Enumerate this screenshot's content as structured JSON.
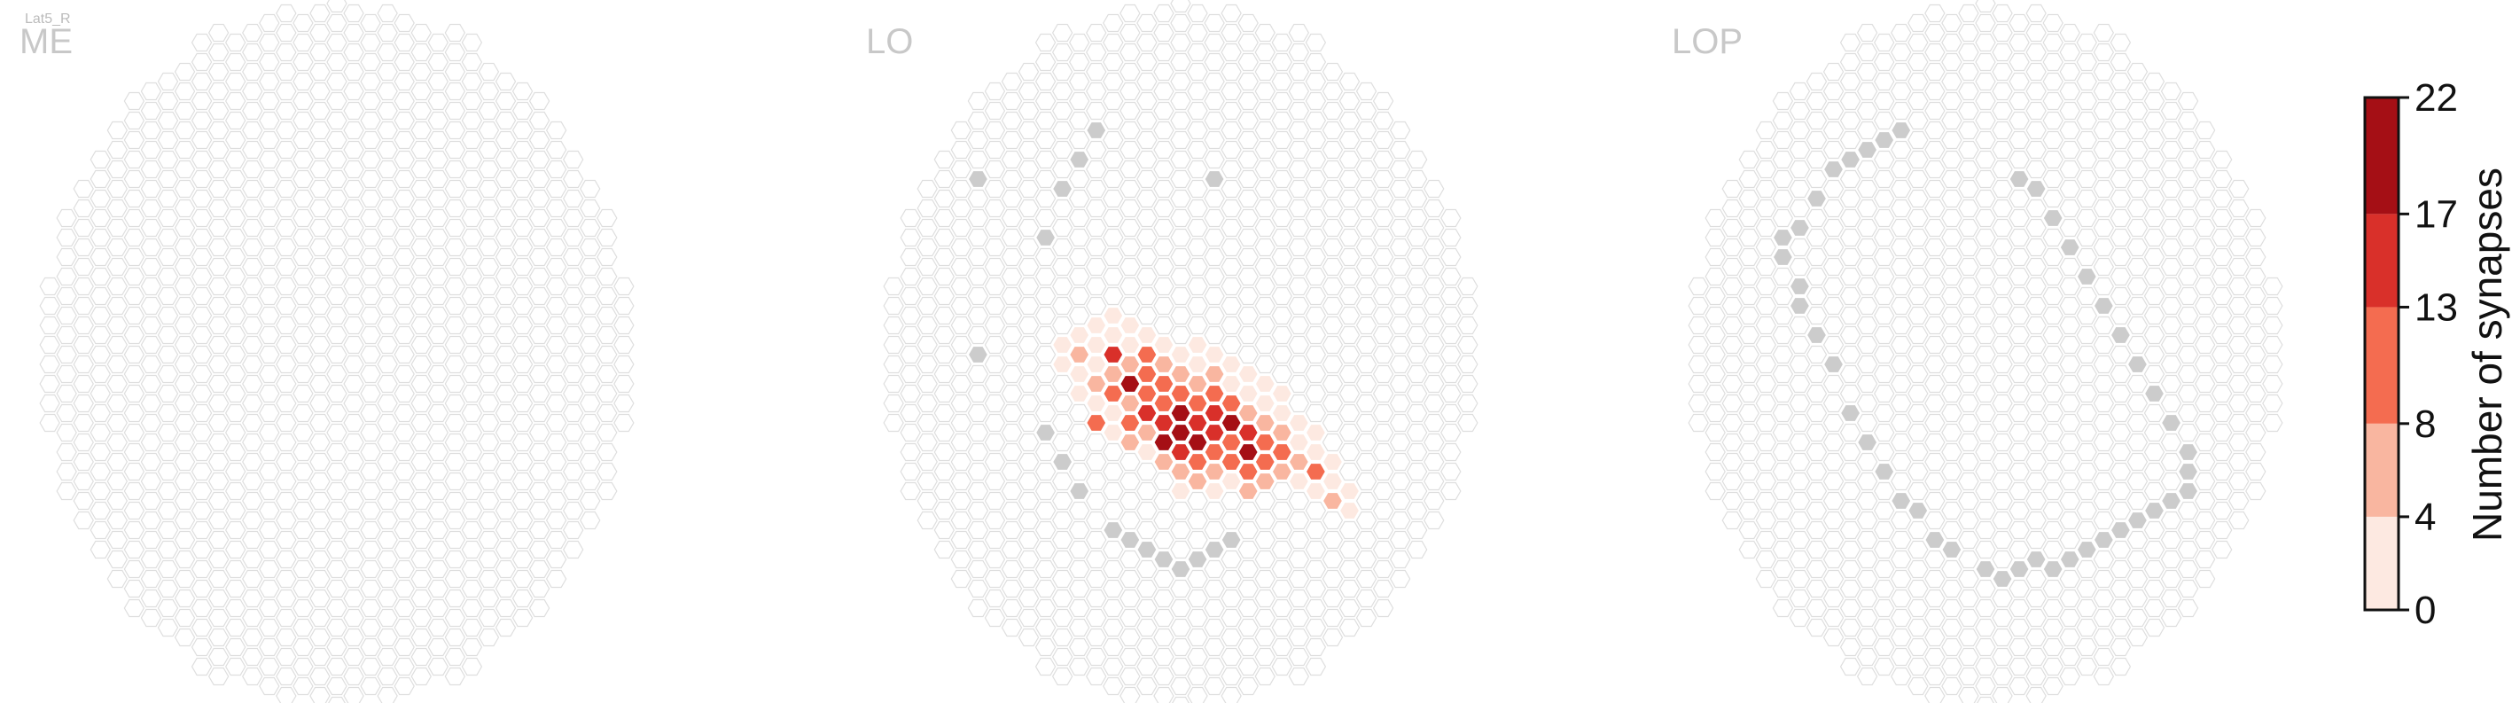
{
  "cell_type_label": "Lat5_R",
  "colors": {
    "grid_stroke": "#dedede",
    "empty_fill": "#ffffff",
    "missing_fill": "#cccccc",
    "scale": [
      "#fde9e1",
      "#f9b6a0",
      "#f46c50",
      "#d9302a",
      "#a50f15"
    ]
  },
  "chart_data": [
    {
      "type": "heatmap",
      "title": "ME",
      "missing_columns": [],
      "cells": []
    },
    {
      "type": "heatmap",
      "title": "LO",
      "missing_columns": [
        [
          -8,
          -2
        ],
        [
          -8,
          8
        ],
        [
          -7,
          -5
        ],
        [
          -7,
          9
        ],
        [
          -6,
          -7
        ],
        [
          -6,
          10
        ],
        [
          -5,
          -9
        ],
        [
          -4,
          11
        ],
        [
          -3,
          11
        ],
        [
          -2,
          11
        ],
        [
          -1,
          11
        ],
        [
          0,
          11
        ],
        [
          1,
          10
        ],
        [
          2,
          -10
        ],
        [
          2,
          9
        ],
        [
          3,
          8
        ],
        [
          -12,
          -3
        ],
        [
          -12,
          6
        ]
      ],
      "cells": [
        [
          -6,
          3,
          7
        ],
        [
          -6,
          4,
          3
        ],
        [
          -5,
          2,
          2
        ],
        [
          -5,
          3,
          4
        ],
        [
          -5,
          4,
          6
        ],
        [
          -5,
          5,
          4
        ],
        [
          -5,
          6,
          12
        ],
        [
          -4,
          1,
          1
        ],
        [
          -4,
          2,
          15
        ],
        [
          -4,
          3,
          6
        ],
        [
          -4,
          4,
          9
        ],
        [
          -4,
          5,
          4
        ],
        [
          -4,
          6,
          2
        ],
        [
          -3,
          0,
          1
        ],
        [
          -3,
          1,
          3
        ],
        [
          -3,
          2,
          6
        ],
        [
          -3,
          3,
          18
        ],
        [
          -3,
          4,
          7
        ],
        [
          -3,
          5,
          9
        ],
        [
          -3,
          6,
          5
        ],
        [
          -2,
          0,
          2
        ],
        [
          -2,
          1,
          11
        ],
        [
          -2,
          2,
          10
        ],
        [
          -2,
          3,
          12
        ],
        [
          -2,
          4,
          14
        ],
        [
          -2,
          5,
          8
        ],
        [
          -2,
          6,
          3
        ],
        [
          -1,
          0,
          1
        ],
        [
          -1,
          1,
          5
        ],
        [
          -1,
          2,
          9
        ],
        [
          -1,
          3,
          11
        ],
        [
          -1,
          4,
          15
        ],
        [
          -1,
          5,
          20
        ],
        [
          -1,
          6,
          6
        ],
        [
          0,
          0,
          3
        ],
        [
          0,
          1,
          7
        ],
        [
          0,
          2,
          10
        ],
        [
          0,
          3,
          19
        ],
        [
          0,
          4,
          21
        ],
        [
          0,
          5,
          16
        ],
        [
          0,
          6,
          8
        ],
        [
          0,
          7,
          2
        ],
        [
          1,
          -1,
          1
        ],
        [
          1,
          0,
          3
        ],
        [
          1,
          1,
          8
        ],
        [
          1,
          2,
          12
        ],
        [
          1,
          3,
          17
        ],
        [
          1,
          4,
          22
        ],
        [
          1,
          5,
          13
        ],
        [
          1,
          6,
          5
        ],
        [
          2,
          -1,
          2
        ],
        [
          2,
          0,
          6
        ],
        [
          2,
          1,
          9
        ],
        [
          2,
          2,
          14
        ],
        [
          2,
          3,
          16
        ],
        [
          2,
          4,
          11
        ],
        [
          2,
          5,
          7
        ],
        [
          2,
          6,
          3
        ],
        [
          3,
          -1,
          1
        ],
        [
          3,
          0,
          4
        ],
        [
          3,
          1,
          10
        ],
        [
          3,
          2,
          18
        ],
        [
          3,
          3,
          13
        ],
        [
          3,
          4,
          9
        ],
        [
          3,
          5,
          4
        ],
        [
          4,
          0,
          2
        ],
        [
          4,
          1,
          7
        ],
        [
          4,
          2,
          15
        ],
        [
          4,
          3,
          20
        ],
        [
          4,
          4,
          12
        ],
        [
          4,
          5,
          5
        ],
        [
          5,
          0,
          1
        ],
        [
          5,
          1,
          5
        ],
        [
          5,
          2,
          9
        ],
        [
          5,
          3,
          11
        ],
        [
          5,
          4,
          6
        ],
        [
          6,
          0,
          2
        ],
        [
          6,
          1,
          8
        ],
        [
          6,
          2,
          13
        ],
        [
          6,
          3,
          7
        ],
        [
          7,
          1,
          3
        ],
        [
          7,
          2,
          6
        ],
        [
          7,
          3,
          4
        ],
        [
          8,
          1,
          2
        ],
        [
          8,
          2,
          9
        ],
        [
          8,
          3,
          3
        ],
        [
          9,
          2,
          1
        ],
        [
          9,
          3,
          5
        ],
        [
          10,
          3,
          2
        ],
        [
          -7,
          3,
          3
        ],
        [
          -7,
          4,
          1
        ],
        [
          -6,
          2,
          1
        ],
        [
          -6,
          5,
          2
        ],
        [
          -5,
          1,
          1
        ],
        [
          -4,
          0,
          1
        ],
        [
          5,
          -1,
          1
        ],
        [
          6,
          -1,
          1
        ],
        [
          7,
          0,
          1
        ],
        [
          8,
          0,
          1
        ],
        [
          9,
          1,
          1
        ],
        [
          10,
          2,
          1
        ],
        [
          4,
          -1,
          1
        ]
      ]
    },
    {
      "type": "heatmap",
      "title": "LOP",
      "missing_columns": [
        [
          -12,
          0
        ],
        [
          -12,
          1
        ],
        [
          -11,
          -1
        ],
        [
          -11,
          2
        ],
        [
          -11,
          3
        ],
        [
          -10,
          -3
        ],
        [
          -10,
          4
        ],
        [
          -9,
          -5
        ],
        [
          -9,
          5
        ],
        [
          -8,
          -6
        ],
        [
          -8,
          7
        ],
        [
          -7,
          -7
        ],
        [
          -7,
          8
        ],
        [
          -6,
          -8
        ],
        [
          -6,
          9
        ],
        [
          -5,
          -9
        ],
        [
          -5,
          10
        ],
        [
          -4,
          10
        ],
        [
          -3,
          11
        ],
        [
          -2,
          11
        ],
        [
          0,
          11
        ],
        [
          1,
          11
        ],
        [
          2,
          -10
        ],
        [
          2,
          10
        ],
        [
          3,
          -10
        ],
        [
          3,
          9
        ],
        [
          4,
          -9
        ],
        [
          4,
          9
        ],
        [
          5,
          -8
        ],
        [
          5,
          8
        ],
        [
          6,
          -7
        ],
        [
          6,
          7
        ],
        [
          7,
          -6
        ],
        [
          7,
          6
        ],
        [
          8,
          -5
        ],
        [
          8,
          5
        ],
        [
          9,
          -4
        ],
        [
          9,
          4
        ],
        [
          10,
          -3
        ],
        [
          10,
          3
        ],
        [
          11,
          -2
        ],
        [
          11,
          2
        ],
        [
          12,
          -1
        ],
        [
          12,
          0
        ],
        [
          12,
          1
        ]
      ],
      "cells": []
    }
  ],
  "colorbar": {
    "label": "Number of synapses",
    "ticks": [
      "0",
      "4",
      "8",
      "13",
      "17",
      "22"
    ],
    "min": 0,
    "max": 22
  }
}
